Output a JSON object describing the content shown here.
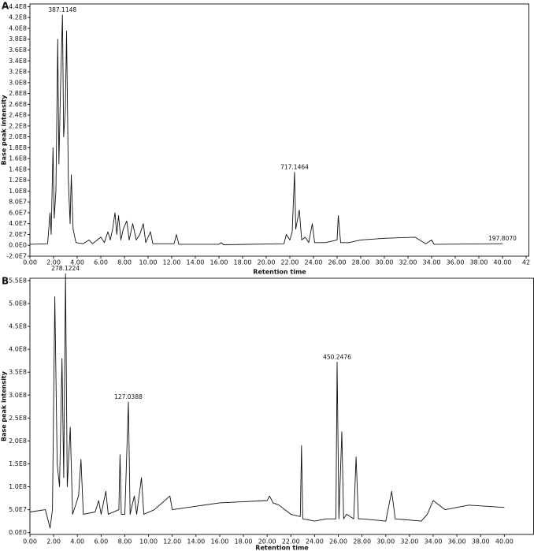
{
  "chart_data": [
    {
      "type": "line",
      "panel": "A",
      "xlabel": "Retention time",
      "ylabel": "Base peak intensity",
      "color": "#111111",
      "xlim": [
        0,
        42
      ],
      "ylim": [
        -20000000.0,
        445000000.0
      ],
      "xticks": [
        {
          "value": 0,
          "label": "0.00"
        },
        {
          "value": 2,
          "label": "2.00"
        },
        {
          "value": 4,
          "label": "4.00"
        },
        {
          "value": 6,
          "label": "6.00"
        },
        {
          "value": 8,
          "label": "8.00"
        },
        {
          "value": 10,
          "label": "10.00"
        },
        {
          "value": 12,
          "label": "12.00"
        },
        {
          "value": 14,
          "label": "14.00"
        },
        {
          "value": 16,
          "label": "16.00"
        },
        {
          "value": 18,
          "label": "18.00"
        },
        {
          "value": 20,
          "label": "20.00"
        },
        {
          "value": 22,
          "label": "22.00"
        },
        {
          "value": 24,
          "label": "24.00"
        },
        {
          "value": 26,
          "label": "26.00"
        },
        {
          "value": 28,
          "label": "28.00"
        },
        {
          "value": 30,
          "label": "30.00"
        },
        {
          "value": 32,
          "label": "32.00"
        },
        {
          "value": 34,
          "label": "34.00"
        },
        {
          "value": 36,
          "label": "36.00"
        },
        {
          "value": 38,
          "label": "38.00"
        },
        {
          "value": 40,
          "label": "40.00"
        },
        42
      ],
      "yticks": [
        {
          "value": -20000000.0,
          "label": "-2.0E7"
        },
        {
          "value": 0,
          "label": "0.0E0"
        },
        {
          "value": 20000000.0,
          "label": "2.0E7"
        },
        {
          "value": 40000000.0,
          "label": "4.0E7"
        },
        {
          "value": 60000000.0,
          "label": "6.0E7"
        },
        {
          "value": 80000000.0,
          "label": "8.0E7"
        },
        {
          "value": 100000000.0,
          "label": "1.0E8"
        },
        {
          "value": 120000000.0,
          "label": "1.2E8"
        },
        {
          "value": 140000000.0,
          "label": "1.4E8"
        },
        {
          "value": 160000000.0,
          "label": "1.6E8"
        },
        {
          "value": 180000000.0,
          "label": "1.8E8"
        },
        {
          "value": 200000000.0,
          "label": "2.0E8"
        },
        {
          "value": 220000000.0,
          "label": "2.2E8"
        },
        {
          "value": 240000000.0,
          "label": "2.4E8"
        },
        {
          "value": 260000000.0,
          "label": "2.6E8"
        },
        {
          "value": 280000000.0,
          "label": "2.8E8"
        },
        {
          "value": 300000000.0,
          "label": "3.0E8"
        },
        {
          "value": 320000000.0,
          "label": "3.2E8"
        },
        {
          "value": 340000000.0,
          "label": "3.4E8"
        },
        {
          "value": 360000000.0,
          "label": "3.6E8"
        },
        {
          "value": 380000000.0,
          "label": "3.8E8"
        },
        {
          "value": 400000000.0,
          "label": "4.0E8"
        },
        {
          "value": 420000000.0,
          "label": "4.2E8"
        },
        {
          "value": 440000000.0,
          "label": "4.4E8"
        }
      ],
      "x": [
        0,
        1.5,
        1.7,
        1.8,
        1.95,
        2.05,
        2.2,
        2.35,
        2.45,
        2.6,
        2.75,
        2.85,
        3.0,
        3.1,
        3.25,
        3.4,
        3.5,
        3.65,
        3.9,
        4.5,
        5.0,
        5.3,
        6.0,
        6.3,
        6.6,
        6.8,
        7.0,
        7.2,
        7.35,
        7.5,
        7.7,
        7.9,
        8.2,
        8.4,
        8.7,
        9.0,
        9.3,
        9.6,
        9.8,
        10.2,
        10.4,
        12.2,
        12.4,
        12.6,
        16,
        16.2,
        16.4,
        21.5,
        21.7,
        22.0,
        22.2,
        22.4,
        22.5,
        22.8,
        23.0,
        23.3,
        23.6,
        23.9,
        24.1,
        25.0,
        26.0,
        26.1,
        26.3,
        27.0,
        28.0,
        30,
        32.6,
        33.5,
        34.0,
        34.2,
        40
      ],
      "values": [
        2000000.0,
        3000000.0,
        60000000.0,
        20000000.0,
        180000000.0,
        50000000.0,
        100000000.0,
        380000000.0,
        150000000.0,
        300000000.0,
        425000000.0,
        200000000.0,
        250000000.0,
        395000000.0,
        120000000.0,
        40000000.0,
        130000000.0,
        30000000.0,
        5000000.0,
        3000000.0,
        10000000.0,
        3000000.0,
        15000000.0,
        5000000.0,
        25000000.0,
        10000000.0,
        30000000.0,
        60000000.0,
        20000000.0,
        55000000.0,
        10000000.0,
        30000000.0,
        45000000.0,
        10000000.0,
        40000000.0,
        10000000.0,
        20000000.0,
        40000000.0,
        5000000.0,
        25000000.0,
        3000000.0,
        3000000.0,
        20000000.0,
        2000000.0,
        2000000.0,
        5000000.0,
        1000000.0,
        3000000.0,
        20000000.0,
        10000000.0,
        25000000.0,
        135000000.0,
        30000000.0,
        65000000.0,
        10000000.0,
        15000000.0,
        5000000.0,
        40000000.0,
        5000000.0,
        5000000.0,
        10000000.0,
        55000000.0,
        5000000.0,
        5000000.0,
        10000000.0,
        13000000.0,
        15000000.0,
        3000000.0,
        10000000.0,
        2000000.0,
        3000000.0
      ],
      "annotations": [
        {
          "text": "387.1148",
          "x": 2.75,
          "y": 425000000.0
        },
        {
          "text": "717.1464",
          "x": 22.4,
          "y": 135000000.0
        },
        {
          "text": "197.8070",
          "x": 40,
          "y": 3000000.0
        }
      ]
    },
    {
      "type": "line",
      "panel": "B",
      "xlabel": "Retention time",
      "ylabel": "Base peak intensity",
      "color": "#111111",
      "xlim": [
        0,
        42.5
      ],
      "ylim": [
        -4000000.0,
        555000000.0
      ],
      "xticks": [
        {
          "value": 0,
          "label": "0.00"
        },
        {
          "value": 2,
          "label": "2.00"
        },
        {
          "value": 4,
          "label": "4.00"
        },
        {
          "value": 6,
          "label": "6.00"
        },
        {
          "value": 8,
          "label": "8.00"
        },
        {
          "value": 10,
          "label": "10.00"
        },
        {
          "value": 12,
          "label": "12.00"
        },
        {
          "value": 14,
          "label": "14.00"
        },
        {
          "value": 16,
          "label": "16.00"
        },
        {
          "value": 18,
          "label": "18.00"
        },
        {
          "value": 20,
          "label": "20.00"
        },
        {
          "value": 22,
          "label": "22.00"
        },
        {
          "value": 24,
          "label": "24.00"
        },
        {
          "value": 26,
          "label": "26.00"
        },
        {
          "value": 28,
          "label": "28.00"
        },
        {
          "value": 30,
          "label": "30.00"
        },
        {
          "value": 32,
          "label": "32.00"
        },
        {
          "value": 34,
          "label": "34.00"
        },
        {
          "value": 36,
          "label": "36.00"
        },
        {
          "value": 38,
          "label": "38.00"
        },
        {
          "value": 40,
          "label": "40.00"
        }
      ],
      "yticks": [
        {
          "value": 0,
          "label": "0.0E0"
        },
        {
          "value": 50000000.0,
          "label": "5.0E7"
        },
        {
          "value": 100000000.0,
          "label": "1.0E8"
        },
        {
          "value": 150000000.0,
          "label": "1.5E8"
        },
        {
          "value": 200000000.0,
          "label": "2.0E8"
        },
        {
          "value": 250000000.0,
          "label": "2.5E8"
        },
        {
          "value": 300000000.0,
          "label": "3.0E8"
        },
        {
          "value": 350000000.0,
          "label": "3.5E8"
        },
        {
          "value": 400000000.0,
          "label": "4.0E8"
        },
        {
          "value": 450000000.0,
          "label": "4.5E8"
        },
        {
          "value": 500000000.0,
          "label": "5.0E8"
        },
        {
          "value": 550000000.0,
          "label": "5.5E8"
        }
      ],
      "x": [
        0,
        1.3,
        1.7,
        1.9,
        2.1,
        2.3,
        2.5,
        2.7,
        2.85,
        3.0,
        3.15,
        3.4,
        3.6,
        4.1,
        4.3,
        4.5,
        5.5,
        5.8,
        6.0,
        6.4,
        6.6,
        7.5,
        7.6,
        7.7,
        8.0,
        8.3,
        8.45,
        8.8,
        9.0,
        9.4,
        9.6,
        10.5,
        11.8,
        12,
        16,
        20,
        20.2,
        20.5,
        21,
        22,
        22.8,
        22.9,
        23.0,
        24,
        25,
        25.8,
        25.9,
        26.05,
        26.3,
        26.45,
        26.7,
        27.3,
        27.5,
        27.7,
        28,
        30,
        30.5,
        30.8,
        33.0,
        33.5,
        34,
        35,
        37,
        40
      ],
      "values": [
        45000000.0,
        50000000.0,
        10000000.0,
        50000000.0,
        515000000.0,
        150000000.0,
        100000000.0,
        380000000.0,
        120000000.0,
        565000000.0,
        100000000.0,
        230000000.0,
        40000000.0,
        80000000.0,
        160000000.0,
        40000000.0,
        45000000.0,
        70000000.0,
        40000000.0,
        90000000.0,
        40000000.0,
        50000000.0,
        170000000.0,
        40000000.0,
        40000000.0,
        285000000.0,
        40000000.0,
        80000000.0,
        40000000.0,
        120000000.0,
        40000000.0,
        50000000.0,
        80000000.0,
        50000000.0,
        65000000.0,
        70000000.0,
        80000000.0,
        65000000.0,
        60000000.0,
        40000000.0,
        35000000.0,
        190000000.0,
        30000000.0,
        25000000.0,
        30000000.0,
        30000000.0,
        372000000.0,
        30000000.0,
        220000000.0,
        30000000.0,
        40000000.0,
        30000000.0,
        165000000.0,
        30000000.0,
        30000000.0,
        25000000.0,
        90000000.0,
        30000000.0,
        25000000.0,
        40000000.0,
        70000000.0,
        50000000.0,
        60000000.0,
        55000000.0
      ],
      "annotations": [
        {
          "text": "278.1224",
          "x": 3.0,
          "y": 565000000.0
        },
        {
          "text": "127.0388",
          "x": 8.3,
          "y": 285000000.0
        },
        {
          "text": "450.2476",
          "x": 25.9,
          "y": 372000000.0
        }
      ]
    }
  ]
}
